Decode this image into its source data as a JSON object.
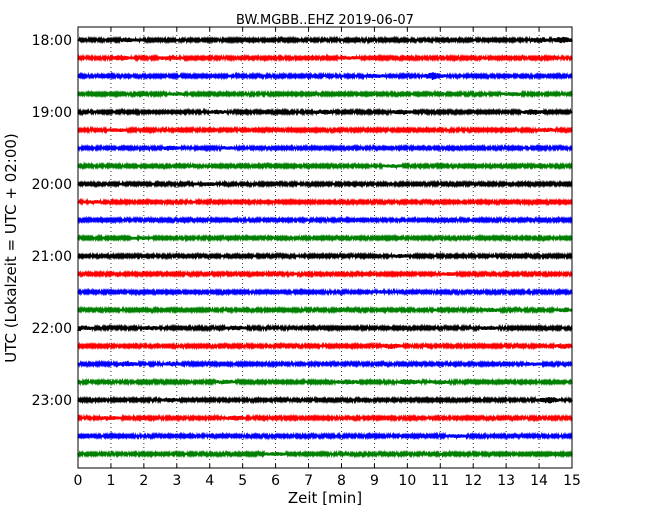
{
  "chart_data": {
    "type": "line",
    "title": "BW.MGBB..EHZ 2019-06-07",
    "xlabel": "Zeit  [min]",
    "ylabel": "UTC (Lokalzeit = UTC + 02:00)",
    "xlim": [
      0,
      15
    ],
    "x_ticks": [
      "0",
      "1",
      "2",
      "3",
      "4",
      "5",
      "6",
      "7",
      "8",
      "9",
      "10",
      "11",
      "12",
      "13",
      "14",
      "15"
    ],
    "y_ticks": [
      "18:00",
      "19:00",
      "20:00",
      "21:00",
      "22:00",
      "23:00"
    ],
    "grid": "vertical dotted lines at each minute",
    "trace_minutes": 15,
    "trace_colors": [
      "#000000",
      "#ff0000",
      "#0000ff",
      "#008000"
    ],
    "traces": [
      {
        "start": "18:00",
        "bursts": [
          {
            "t": 1.5,
            "a": 1.5
          },
          {
            "t": 14.0,
            "a": 2.0
          },
          {
            "t": 14.7,
            "a": 3.0
          }
        ]
      },
      {
        "start": "18:15",
        "bursts": [
          {
            "t": 1.3,
            "a": 2.0
          },
          {
            "t": 2.8,
            "a": 2.0
          },
          {
            "t": 8.2,
            "a": 1.0
          }
        ]
      },
      {
        "start": "18:30",
        "bursts": [
          {
            "t": 9.0,
            "a": 1.5
          },
          {
            "t": 10.8,
            "a": 3.0
          }
        ]
      },
      {
        "start": "18:45",
        "bursts": [
          {
            "t": 3.0,
            "a": 1.0
          },
          {
            "t": 13.2,
            "a": 1.5
          }
        ]
      },
      {
        "start": "19:00",
        "bursts": [
          {
            "t": 4.2,
            "a": 1.2
          },
          {
            "t": 7.5,
            "a": 2.0
          },
          {
            "t": 9.8,
            "a": 2.0
          },
          {
            "t": 13.8,
            "a": 2.5
          }
        ]
      },
      {
        "start": "19:15",
        "bursts": [
          {
            "t": 1.2,
            "a": 1.0
          },
          {
            "t": 14.2,
            "a": 1.5
          }
        ]
      },
      {
        "start": "19:30",
        "bursts": [
          {
            "t": 2.8,
            "a": 1.5
          },
          {
            "t": 4.5,
            "a": 1.0
          }
        ]
      },
      {
        "start": "19:45",
        "bursts": [
          {
            "t": 9.5,
            "a": 1.0
          }
        ]
      },
      {
        "start": "20:00",
        "bursts": [
          {
            "t": 4.0,
            "a": 1.3
          }
        ]
      },
      {
        "start": "20:15",
        "bursts": [
          {
            "t": 0.5,
            "a": 0.8
          }
        ]
      },
      {
        "start": "20:30",
        "bursts": []
      },
      {
        "start": "20:45",
        "bursts": [
          {
            "t": 2.0,
            "a": 0.8
          }
        ]
      },
      {
        "start": "21:00",
        "bursts": [
          {
            "t": 9.8,
            "a": 1.0
          }
        ]
      },
      {
        "start": "21:15",
        "bursts": [
          {
            "t": 11.3,
            "a": 1.0
          }
        ]
      },
      {
        "start": "21:30",
        "bursts": [
          {
            "t": 9.2,
            "a": 0.8
          }
        ]
      },
      {
        "start": "21:45",
        "bursts": [
          {
            "t": 12.5,
            "a": 1.5
          },
          {
            "t": 14.8,
            "a": 1.5
          }
        ]
      },
      {
        "start": "22:00",
        "bursts": [
          {
            "t": 0.1,
            "a": 2.0
          },
          {
            "t": 2.2,
            "a": 1.5
          },
          {
            "t": 4.8,
            "a": 1.5
          },
          {
            "t": 12.5,
            "a": 1.5
          }
        ]
      },
      {
        "start": "22:15",
        "bursts": [
          {
            "t": 9.5,
            "a": 2.5
          },
          {
            "t": 14.8,
            "a": 2.0
          }
        ]
      },
      {
        "start": "22:30",
        "bursts": [
          {
            "t": 1.5,
            "a": 2.0
          },
          {
            "t": 2.8,
            "a": 1.5
          },
          {
            "t": 13.8,
            "a": 1.0
          }
        ]
      },
      {
        "start": "22:45",
        "bursts": [
          {
            "t": 4.5,
            "a": 1.5
          },
          {
            "t": 8.2,
            "a": 2.0
          },
          {
            "t": 10.0,
            "a": 2.0
          },
          {
            "t": 11.0,
            "a": 1.5
          }
        ]
      },
      {
        "start": "23:00",
        "bursts": [
          {
            "t": 2.8,
            "a": 1.5
          },
          {
            "t": 14.3,
            "a": 2.5
          }
        ]
      },
      {
        "start": "23:15",
        "bursts": [
          {
            "t": 1.0,
            "a": 1.5
          },
          {
            "t": 4.8,
            "a": 2.0
          }
        ]
      },
      {
        "start": "23:30",
        "bursts": [
          {
            "t": 11.5,
            "a": 1.0
          }
        ]
      },
      {
        "start": "23:45",
        "bursts": [
          {
            "t": 6.0,
            "a": 1.0
          }
        ]
      }
    ]
  }
}
